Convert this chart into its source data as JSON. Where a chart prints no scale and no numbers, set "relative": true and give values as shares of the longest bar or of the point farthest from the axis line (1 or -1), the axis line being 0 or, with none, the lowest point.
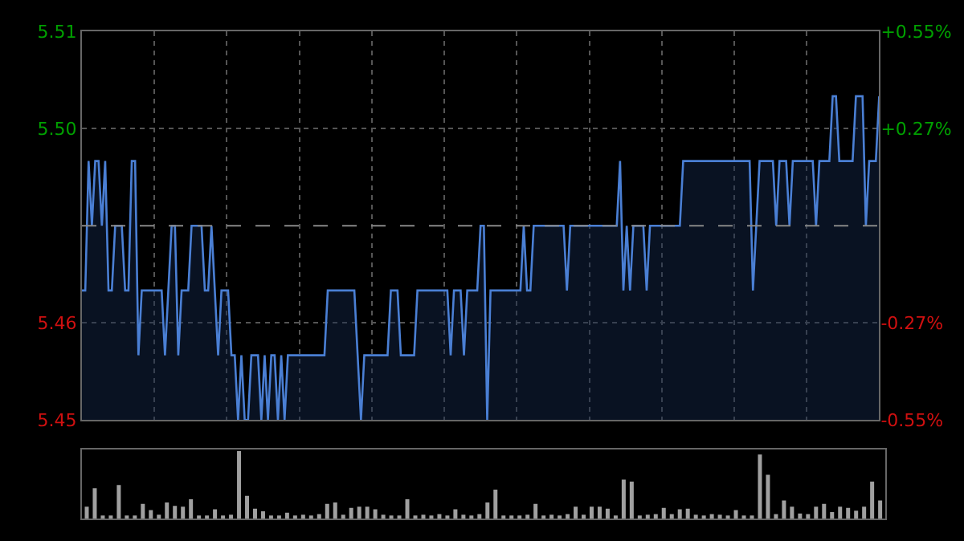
{
  "chart_data": [
    {
      "type": "area",
      "categories": [
        null,
        null,
        null,
        null,
        null,
        null,
        null,
        null,
        null,
        null,
        null,
        null,
        null,
        null,
        null,
        null,
        null,
        null,
        null,
        null,
        null,
        null,
        null,
        null,
        null,
        null,
        null,
        null,
        null,
        null,
        null,
        null,
        null,
        null,
        null,
        null,
        null,
        null,
        null,
        null,
        null,
        null,
        null,
        null,
        null,
        null,
        null,
        null,
        null,
        null,
        null,
        null,
        null,
        null,
        null,
        null,
        null,
        null,
        null,
        null,
        null,
        null,
        null,
        null,
        null,
        null,
        null,
        null,
        null,
        null,
        null,
        null,
        null,
        null,
        null,
        null,
        null,
        null,
        null,
        null,
        null,
        null,
        null,
        null,
        null,
        null,
        null,
        null,
        null,
        null,
        null,
        null,
        null,
        null,
        null,
        null,
        null,
        null,
        null,
        null,
        null,
        null,
        null,
        null,
        null,
        null,
        null,
        null,
        null,
        null,
        null,
        null,
        null,
        null,
        null,
        null,
        null,
        null,
        null,
        null,
        null,
        null,
        null,
        null,
        null,
        null,
        null,
        null,
        null,
        null,
        null,
        null,
        null,
        null,
        null,
        null,
        null,
        null,
        null,
        null,
        null,
        null,
        null,
        null,
        null,
        null,
        null,
        null,
        null,
        null,
        null,
        null,
        null,
        null,
        null,
        null,
        null,
        null,
        null,
        null,
        null,
        null,
        null,
        null,
        null,
        null,
        null,
        null,
        null,
        null,
        null,
        null,
        null,
        null,
        null,
        null,
        null,
        null,
        null,
        null,
        null,
        null,
        null,
        null,
        null,
        null,
        null,
        null,
        null,
        null,
        null,
        null,
        null,
        null,
        null,
        null,
        null,
        null,
        null,
        null,
        null,
        null,
        null,
        null,
        null,
        null,
        null,
        null,
        null,
        null,
        null,
        null,
        null,
        null,
        null,
        null,
        null,
        null,
        null,
        null,
        null,
        null,
        null,
        null,
        null,
        null,
        null,
        null,
        null,
        null,
        null,
        null,
        null,
        null,
        null,
        null,
        null,
        null,
        null,
        null,
        null
      ],
      "series": [
        {
          "color": "#4a7fd4",
          "values": [
            5.47,
            5.47,
            5.49,
            5.48,
            5.49,
            5.49,
            5.48,
            5.49,
            5.47,
            5.47,
            5.48,
            5.48,
            5.48,
            5.47,
            5.47,
            5.49,
            5.49,
            5.46,
            5.47,
            5.47,
            5.47,
            5.47,
            5.47,
            5.47,
            5.47,
            5.46,
            5.47,
            5.48,
            5.48,
            5.46,
            5.47,
            5.47,
            5.47,
            5.48,
            5.48,
            5.48,
            5.48,
            5.47,
            5.47,
            5.48,
            5.47,
            5.46,
            5.47,
            5.47,
            5.47,
            5.46,
            5.46,
            5.45,
            5.46,
            5.45,
            5.45,
            5.46,
            5.46,
            5.46,
            5.45,
            5.46,
            5.45,
            5.46,
            5.46,
            5.45,
            5.46,
            5.45,
            5.46,
            5.46,
            5.46,
            5.46,
            5.46,
            5.46,
            5.46,
            5.46,
            5.46,
            5.46,
            5.46,
            5.46,
            5.47,
            5.47,
            5.47,
            5.47,
            5.47,
            5.47,
            5.47,
            5.47,
            5.47,
            5.46,
            5.45,
            5.46,
            5.46,
            5.46,
            5.46,
            5.46,
            5.46,
            5.46,
            5.46,
            5.47,
            5.47,
            5.47,
            5.46,
            5.46,
            5.46,
            5.46,
            5.46,
            5.47,
            5.47,
            5.47,
            5.47,
            5.47,
            5.47,
            5.47,
            5.47,
            5.47,
            5.47,
            5.46,
            5.47,
            5.47,
            5.47,
            5.46,
            5.47,
            5.47,
            5.47,
            5.47,
            5.48,
            5.48,
            5.45,
            5.47,
            5.47,
            5.47,
            5.47,
            5.47,
            5.47,
            5.47,
            5.47,
            5.47,
            5.47,
            5.48,
            5.47,
            5.47,
            5.48,
            5.48,
            5.48,
            5.48,
            5.48,
            5.48,
            5.48,
            5.48,
            5.48,
            5.48,
            5.47,
            5.48,
            5.48,
            5.48,
            5.48,
            5.48,
            5.48,
            5.48,
            5.48,
            5.48,
            5.48,
            5.48,
            5.48,
            5.48,
            5.48,
            5.48,
            5.49,
            5.47,
            5.48,
            5.47,
            5.48,
            5.48,
            5.48,
            5.48,
            5.47,
            5.48,
            5.48,
            5.48,
            5.48,
            5.48,
            5.48,
            5.48,
            5.48,
            5.48,
            5.48,
            5.49,
            5.49,
            5.49,
            5.49,
            5.49,
            5.49,
            5.49,
            5.49,
            5.49,
            5.49,
            5.49,
            5.49,
            5.49,
            5.49,
            5.49,
            5.49,
            5.49,
            5.49,
            5.49,
            5.49,
            5.49,
            5.47,
            5.48,
            5.49,
            5.49,
            5.49,
            5.49,
            5.49,
            5.48,
            5.49,
            5.49,
            5.49,
            5.48,
            5.49,
            5.49,
            5.49,
            5.49,
            5.49,
            5.49,
            5.49,
            5.48,
            5.49,
            5.49,
            5.49,
            5.49,
            5.5,
            5.5,
            5.49,
            5.49,
            5.49,
            5.49,
            5.49,
            5.5,
            5.5,
            5.5,
            5.48,
            5.49,
            5.49,
            5.49,
            5.5
          ]
        }
      ],
      "ylim": [
        5.45,
        5.51
      ],
      "yticks": [
        5.51,
        {
          "value": 5.495,
          "label": "5.50"
        },
        {
          "value": 5.465,
          "label": "5.46"
        },
        5.45
      ],
      "y2lim": [
        -0.55,
        0.55
      ],
      "y2ticks": [
        {
          "value": 0.55,
          "label": "+0.55%"
        },
        {
          "value": 0.274,
          "label": "+0.27%"
        },
        {
          "value": -0.274,
          "label": "-0.27%"
        },
        {
          "value": -0.55,
          "label": "-0.55%"
        }
      ],
      "ref_lines": [
        {
          "axis": "y",
          "value": 5.48,
          "color": "#888888",
          "line_style": "dashed"
        }
      ],
      "grid": true
    },
    {
      "type": "bar",
      "relative": true,
      "categories": [
        null,
        null,
        null,
        null,
        null,
        null,
        null,
        null,
        null,
        null,
        null,
        null,
        null,
        null,
        null,
        null,
        null,
        null,
        null,
        null,
        null,
        null,
        null,
        null,
        null,
        null,
        null,
        null,
        null,
        null,
        null,
        null,
        null,
        null,
        null,
        null,
        null,
        null,
        null,
        null,
        null,
        null,
        null,
        null,
        null,
        null,
        null,
        null,
        null,
        null,
        null,
        null,
        null,
        null,
        null,
        null,
        null,
        null,
        null,
        null,
        null,
        null,
        null,
        null,
        null,
        null,
        null,
        null,
        null,
        null,
        null,
        null,
        null,
        null,
        null,
        null,
        null,
        null,
        null,
        null,
        null,
        null,
        null,
        null,
        null,
        null,
        null,
        null,
        null,
        null,
        null,
        null,
        null,
        null,
        null,
        null,
        null,
        null,
        null,
        null
      ],
      "values": [
        0.18,
        0.45,
        0.05,
        0.05,
        0.5,
        0.05,
        0.05,
        0.22,
        0.13,
        0.06,
        0.24,
        0.19,
        0.18,
        0.29,
        0.05,
        0.05,
        0.14,
        0.05,
        0.06,
        1,
        0.34,
        0.15,
        0.11,
        0.05,
        0.05,
        0.09,
        0.05,
        0.06,
        0.05,
        0.07,
        0.22,
        0.24,
        0.06,
        0.16,
        0.18,
        0.18,
        0.14,
        0.06,
        0.05,
        0.05,
        0.29,
        0.05,
        0.06,
        0.05,
        0.07,
        0.05,
        0.14,
        0.06,
        0.05,
        0.07,
        0.24,
        0.43,
        0.05,
        0.05,
        0.05,
        0.06,
        0.22,
        0.05,
        0.06,
        0.05,
        0.07,
        0.18,
        0.06,
        0.18,
        0.18,
        0.15,
        0.05,
        0.58,
        0.55,
        0.05,
        0.06,
        0.07,
        0.16,
        0.07,
        0.14,
        0.15,
        0.06,
        0.05,
        0.07,
        0.06,
        0.05,
        0.13,
        0.05,
        0.05,
        0.95,
        0.65,
        0.07,
        0.27,
        0.18,
        0.08,
        0.07,
        0.18,
        0.22,
        0.1,
        0.18,
        0.16,
        0.12,
        0.18,
        0.55,
        0.27
      ],
      "color": "#a0a0a0"
    }
  ]
}
